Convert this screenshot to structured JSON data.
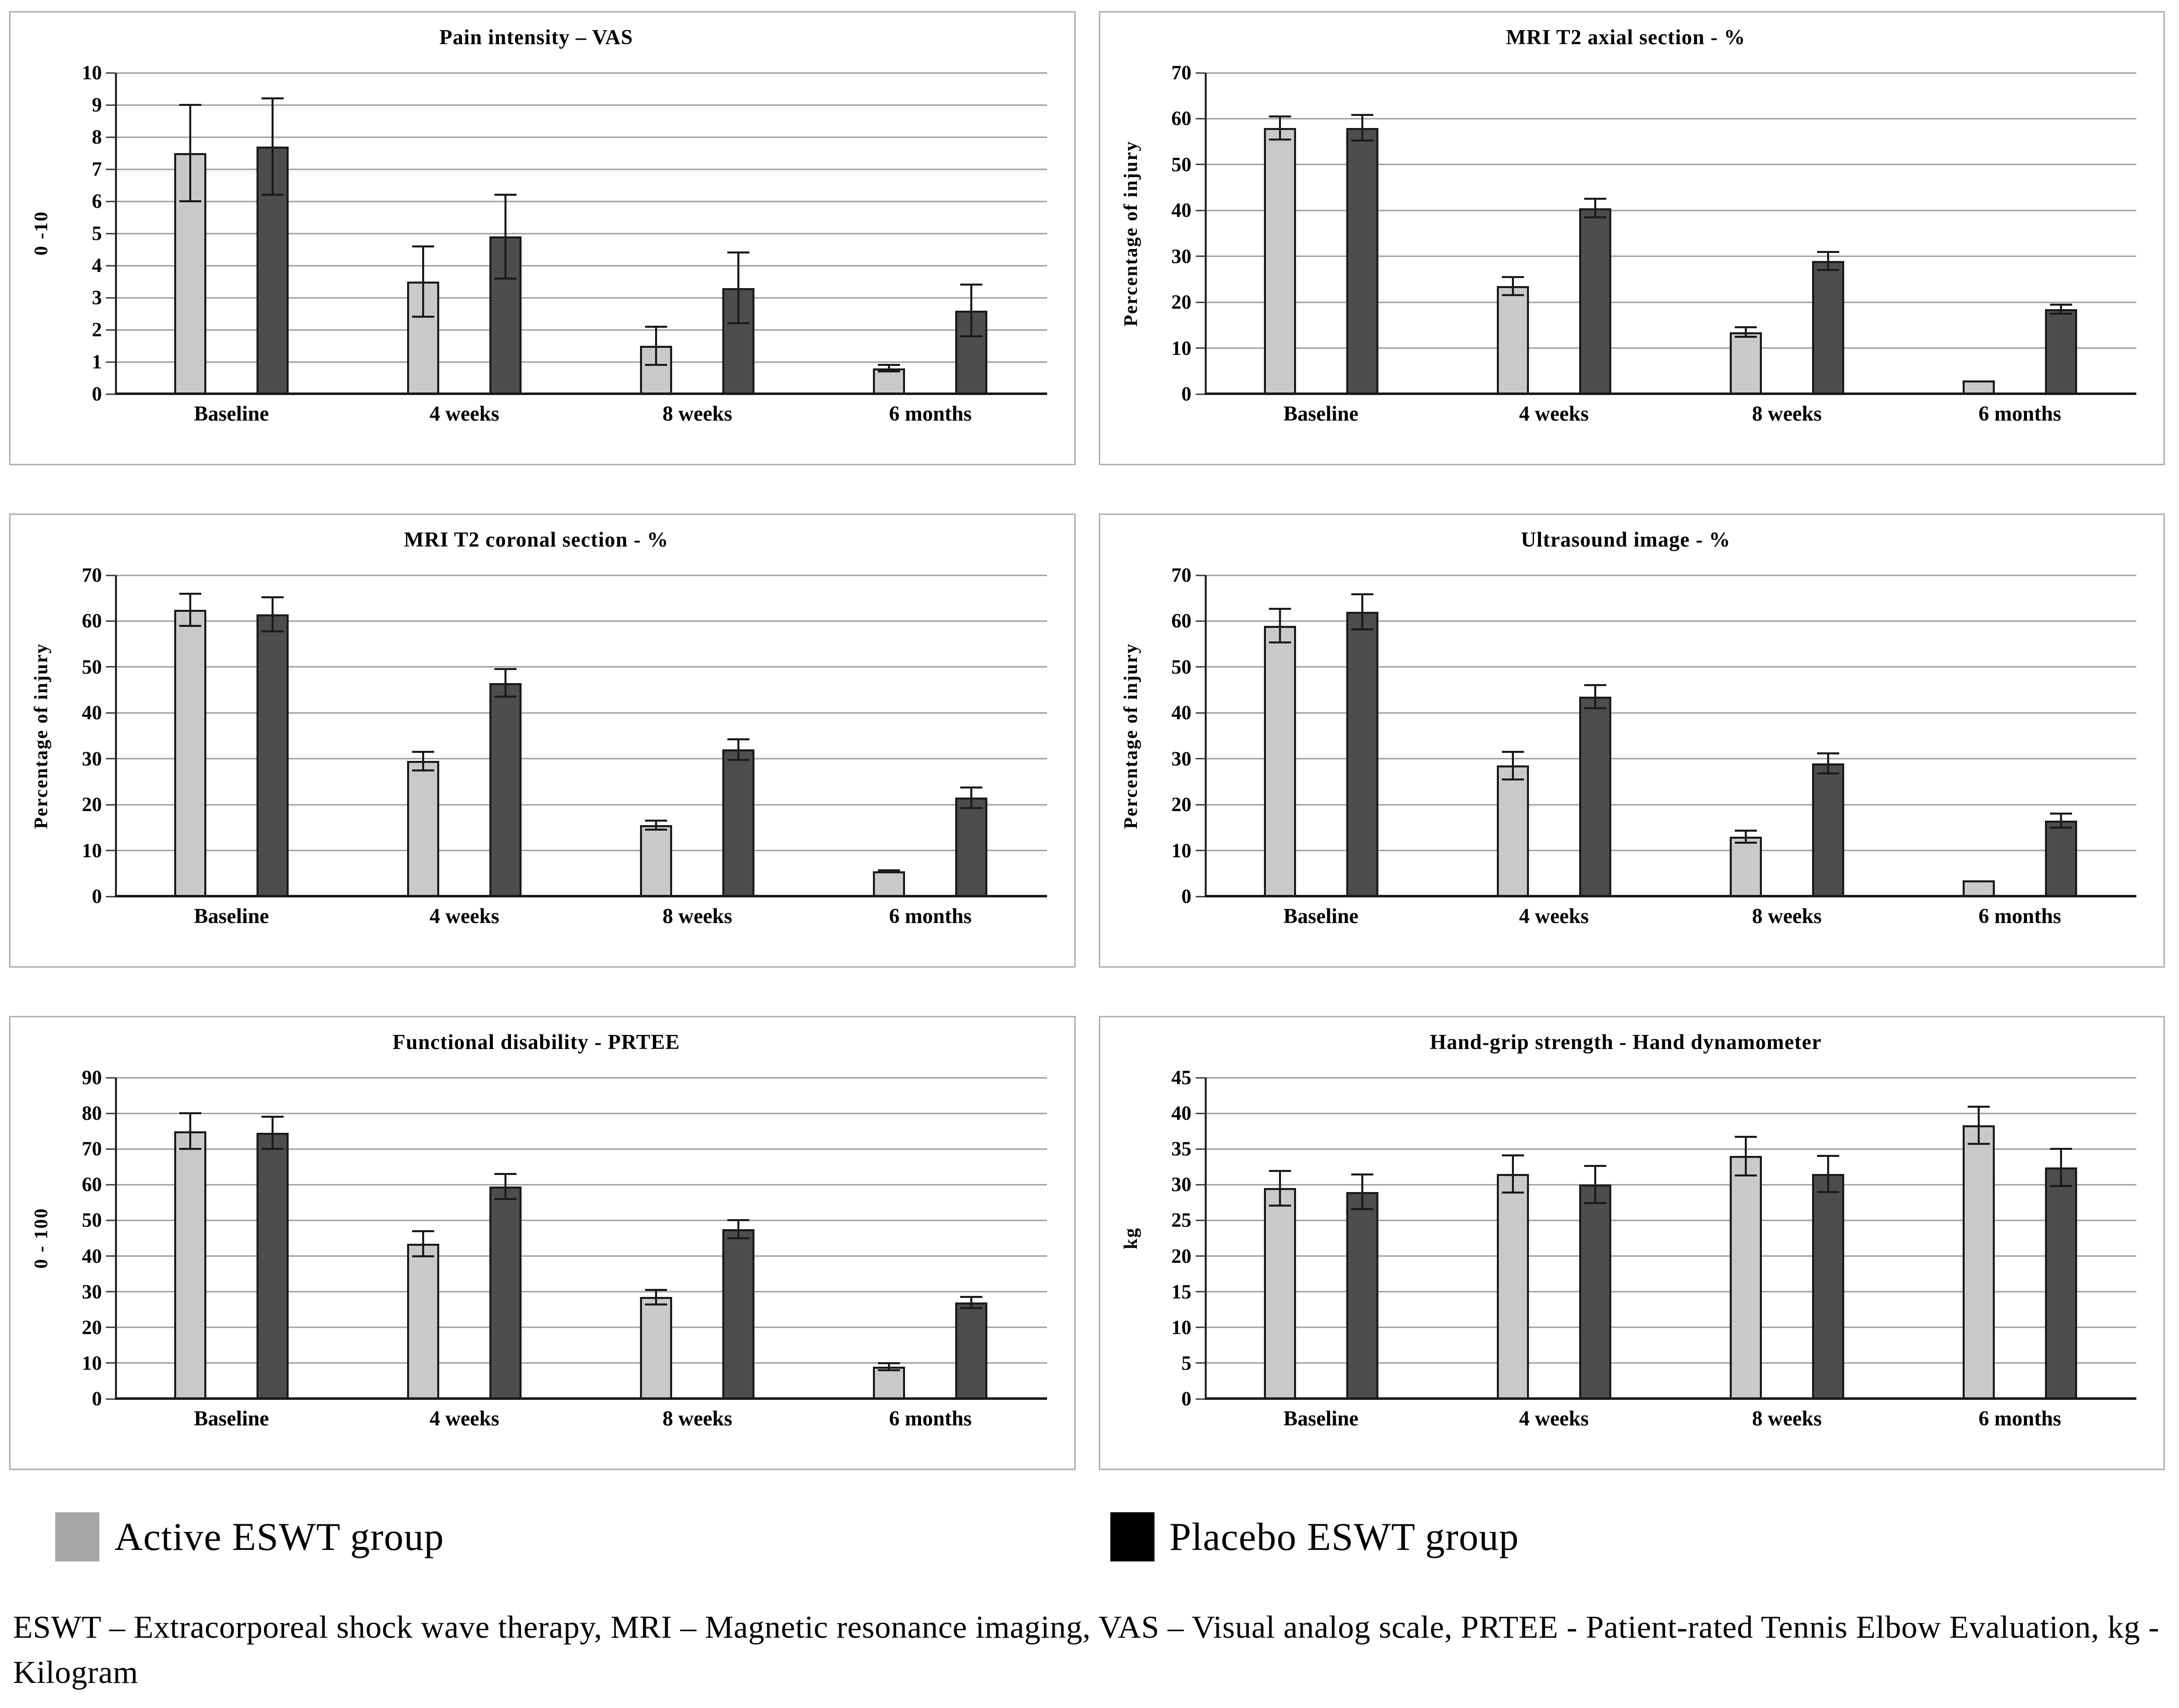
{
  "legend": {
    "active_label": "Active ESWT group",
    "placebo_label": "Placebo ESWT group"
  },
  "footnote": "ESWT – Extracorporeal shock wave therapy, MRI – Magnetic resonance imaging, VAS – Visual analog scale, PRTEE - Patient-rated Tennis Elbow Evaluation, kg - Kilogram",
  "colors": {
    "active_fill": "#c9c9c9",
    "placebo_fill": "#4d4d4d",
    "bar_border": "#1a1a1a",
    "grid": "#a6a6a6",
    "axis": "#1a1a1a",
    "panel_border": "#b3b3b3",
    "legend_active": "#a6a6a6",
    "legend_placebo": "#000000"
  },
  "chart_data": [
    {
      "type": "bar",
      "id": "pain-intensity-vas",
      "title": "Pain intensity – VAS",
      "ylabel": "0 -10",
      "ylim": [
        0,
        10
      ],
      "ystep": 1,
      "grid": true,
      "categories": [
        "Baseline",
        "4 weeks",
        "8 weeks",
        "6 months"
      ],
      "series": [
        {
          "name": "Active ESWT group",
          "values": [
            7.5,
            3.5,
            1.5,
            0.8
          ],
          "errors": [
            1.5,
            1.1,
            0.6,
            0.1
          ]
        },
        {
          "name": "Placebo ESWT group",
          "values": [
            7.7,
            4.9,
            3.3,
            2.6
          ],
          "errors": [
            1.5,
            1.3,
            1.1,
            0.8
          ]
        }
      ]
    },
    {
      "type": "bar",
      "id": "mri-t2-axial",
      "title": "MRI T2 axial section - %",
      "ylabel": "Percentage of injury",
      "ylim": [
        0,
        70
      ],
      "ystep": 10,
      "grid": true,
      "categories": [
        "Baseline",
        "4 weeks",
        "8 weeks",
        "6 months"
      ],
      "series": [
        {
          "name": "Active ESWT group",
          "values": [
            58,
            23.5,
            13.5,
            3
          ],
          "errors": [
            2.5,
            2,
            1,
            0
          ]
        },
        {
          "name": "Placebo ESWT group",
          "values": [
            58,
            40.5,
            29,
            18.5
          ],
          "errors": [
            2.8,
            2,
            2,
            1
          ]
        }
      ]
    },
    {
      "type": "bar",
      "id": "mri-t2-coronal",
      "title": "MRI T2 coronal section - %",
      "ylabel": "Percentage of injury",
      "ylim": [
        0,
        70
      ],
      "ystep": 10,
      "grid": true,
      "categories": [
        "Baseline",
        "4 weeks",
        "8 weeks",
        "6 months"
      ],
      "series": [
        {
          "name": "Active ESWT group",
          "values": [
            62.5,
            29.5,
            15.5,
            5.5
          ],
          "errors": [
            3.5,
            2,
            1,
            0.2
          ]
        },
        {
          "name": "Placebo ESWT group",
          "values": [
            61.5,
            46.5,
            32,
            21.5
          ],
          "errors": [
            3.7,
            3,
            2.2,
            2.2
          ]
        }
      ]
    },
    {
      "type": "bar",
      "id": "ultrasound-image",
      "title": "Ultrasound  image - %",
      "ylabel": "Percentage of injury",
      "ylim": [
        0,
        70
      ],
      "ystep": 10,
      "grid": true,
      "categories": [
        "Baseline",
        "4 weeks",
        "8 weeks",
        "6 months"
      ],
      "series": [
        {
          "name": "Active ESWT group",
          "values": [
            59,
            28.5,
            13,
            3.5
          ],
          "errors": [
            3.7,
            3,
            1.3,
            0
          ]
        },
        {
          "name": "Placebo ESWT group",
          "values": [
            62,
            43.5,
            29,
            16.5
          ],
          "errors": [
            3.8,
            2.5,
            2.2,
            1.5
          ]
        }
      ]
    },
    {
      "type": "bar",
      "id": "functional-disability-prtee",
      "title": "Functional disability - PRTEE",
      "ylabel": "0 - 100",
      "ylim": [
        0,
        90
      ],
      "ystep": 10,
      "grid": true,
      "categories": [
        "Baseline",
        "4 weeks",
        "8 weeks",
        "6 months"
      ],
      "series": [
        {
          "name": "Active ESWT group",
          "values": [
            75,
            43.5,
            28.5,
            9
          ],
          "errors": [
            5,
            3.5,
            2,
            1
          ]
        },
        {
          "name": "Placebo ESWT group",
          "values": [
            74.5,
            59.5,
            47.5,
            27
          ],
          "errors": [
            4.5,
            3.5,
            2.5,
            1.5
          ]
        }
      ]
    },
    {
      "type": "bar",
      "id": "hand-grip-strength",
      "title": "Hand-grip strength - Hand dynamometer",
      "ylabel": "kg",
      "ylim": [
        0,
        45
      ],
      "ystep": 5,
      "grid": true,
      "categories": [
        "Baseline",
        "4 weeks",
        "8 weeks",
        "6 months"
      ],
      "series": [
        {
          "name": "Active ESWT group",
          "values": [
            29.5,
            31.5,
            34,
            38.3
          ],
          "errors": [
            2.4,
            2.6,
            2.7,
            2.6
          ]
        },
        {
          "name": "Placebo ESWT group",
          "values": [
            29,
            30,
            31.5,
            32.4
          ],
          "errors": [
            2.4,
            2.6,
            2.5,
            2.6
          ]
        }
      ]
    }
  ]
}
